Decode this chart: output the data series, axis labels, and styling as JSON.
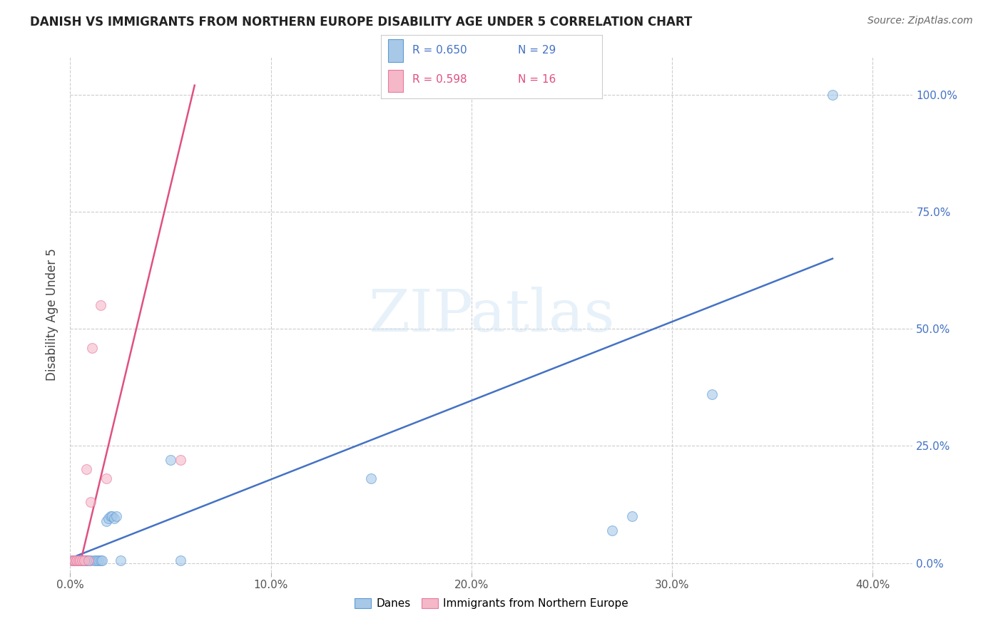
{
  "title": "DANISH VS IMMIGRANTS FROM NORTHERN EUROPE DISABILITY AGE UNDER 5 CORRELATION CHART",
  "source": "Source: ZipAtlas.com",
  "ylabel": "Disability Age Under 5",
  "xlim": [
    0.0,
    0.42
  ],
  "ylim": [
    -0.02,
    1.08
  ],
  "xticks": [
    0.0,
    0.1,
    0.2,
    0.3,
    0.4
  ],
  "xticklabels": [
    "0.0%",
    "10.0%",
    "20.0%",
    "30.0%",
    "40.0%"
  ],
  "ytick_right_labels": [
    "100.0%",
    "75.0%",
    "50.0%",
    "25.0%",
    "0.0%"
  ],
  "ytick_right_values": [
    1.0,
    0.75,
    0.5,
    0.25,
    0.0
  ],
  "ytick_grid_values": [
    0.0,
    0.25,
    0.5,
    0.75,
    1.0
  ],
  "blue_scatter_x": [
    0.001,
    0.002,
    0.002,
    0.003,
    0.003,
    0.004,
    0.004,
    0.005,
    0.005,
    0.006,
    0.006,
    0.007,
    0.007,
    0.008,
    0.008,
    0.009,
    0.01,
    0.012,
    0.013,
    0.014,
    0.015,
    0.016,
    0.018,
    0.019,
    0.02,
    0.021,
    0.022,
    0.023,
    0.025,
    0.05,
    0.055,
    0.15,
    0.27,
    0.28,
    0.32,
    0.38
  ],
  "blue_scatter_y": [
    0.005,
    0.005,
    0.005,
    0.005,
    0.005,
    0.005,
    0.005,
    0.005,
    0.005,
    0.005,
    0.005,
    0.005,
    0.005,
    0.005,
    0.005,
    0.005,
    0.005,
    0.005,
    0.005,
    0.005,
    0.005,
    0.005,
    0.09,
    0.095,
    0.1,
    0.1,
    0.095,
    0.1,
    0.005,
    0.22,
    0.005,
    0.18,
    0.07,
    0.1,
    0.36,
    1.0
  ],
  "pink_scatter_x": [
    0.001,
    0.002,
    0.002,
    0.003,
    0.003,
    0.004,
    0.005,
    0.006,
    0.007,
    0.008,
    0.009,
    0.01,
    0.011,
    0.015,
    0.018,
    0.055
  ],
  "pink_scatter_y": [
    0.005,
    0.005,
    0.005,
    0.005,
    0.005,
    0.005,
    0.005,
    0.005,
    0.005,
    0.2,
    0.005,
    0.13,
    0.46,
    0.55,
    0.18,
    0.22
  ],
  "blue_line_x": [
    0.0,
    0.38
  ],
  "blue_line_y": [
    0.01,
    0.65
  ],
  "pink_line_x": [
    0.005,
    0.062
  ],
  "pink_line_y": [
    0.0,
    1.02
  ],
  "blue_color": "#a8c8e8",
  "blue_edge_color": "#5b9bd5",
  "blue_line_color": "#4472c4",
  "pink_color": "#f4b8c8",
  "pink_edge_color": "#e879a0",
  "pink_line_color": "#e05080",
  "legend_label_blue": "Danes",
  "legend_label_pink": "Immigrants from Northern Europe",
  "watermark_zip": "ZIP",
  "watermark_atlas": "atlas",
  "background_color": "#ffffff",
  "grid_color": "#cccccc"
}
